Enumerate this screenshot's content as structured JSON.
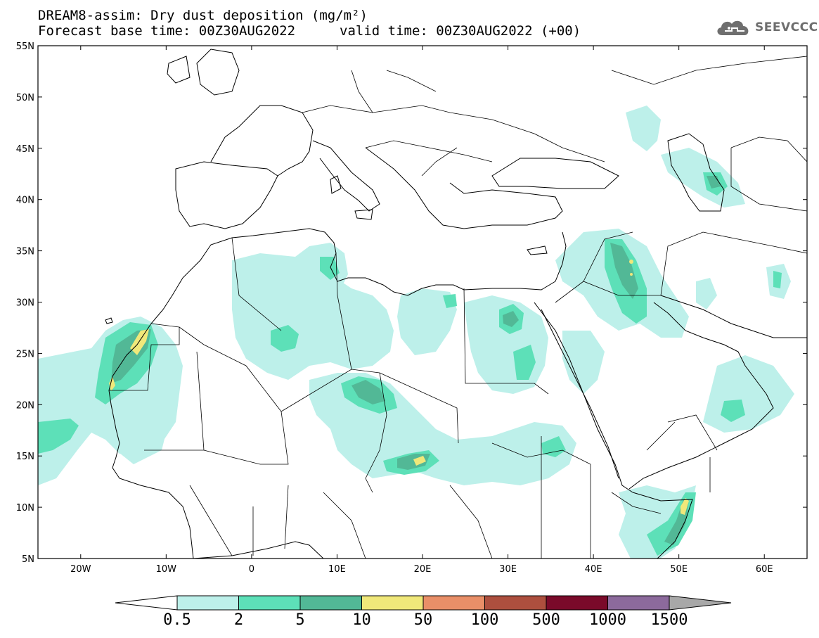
{
  "header": {
    "line1": "DREAM8-assim: Dry dust deposition (mg/m²)",
    "line2": "Forecast base time: 00Z30AUG2022",
    "line3": "valid time: 00Z30AUG2022 (+00)",
    "logo_text": "SEEVCCC"
  },
  "map": {
    "lat_range": [
      5,
      55
    ],
    "lon_range": [
      -25,
      65
    ],
    "lat_ticks": [
      "5N",
      "10N",
      "15N",
      "20N",
      "25N",
      "30N",
      "35N",
      "40N",
      "45N",
      "50N",
      "55N"
    ],
    "lon_ticks": [
      "20W",
      "10W",
      "0",
      "10E",
      "20E",
      "30E",
      "40E",
      "50E",
      "60E"
    ]
  },
  "colorbar": {
    "levels": [
      "0.5",
      "2",
      "5",
      "10",
      "50",
      "100",
      "500",
      "1000",
      "1500"
    ],
    "colors": [
      "#bdf0ea",
      "#5de0b8",
      "#52b896",
      "#f0e87a",
      "#e98f68",
      "#ad4f3e",
      "#7a0a2a",
      "#8c6a9c",
      "#a8a8a8"
    ]
  },
  "legend_colors": {
    "low": "#bdf0ea",
    "mid": "#5de0b8",
    "high": "#52b896",
    "peak": "#f0e87a"
  }
}
